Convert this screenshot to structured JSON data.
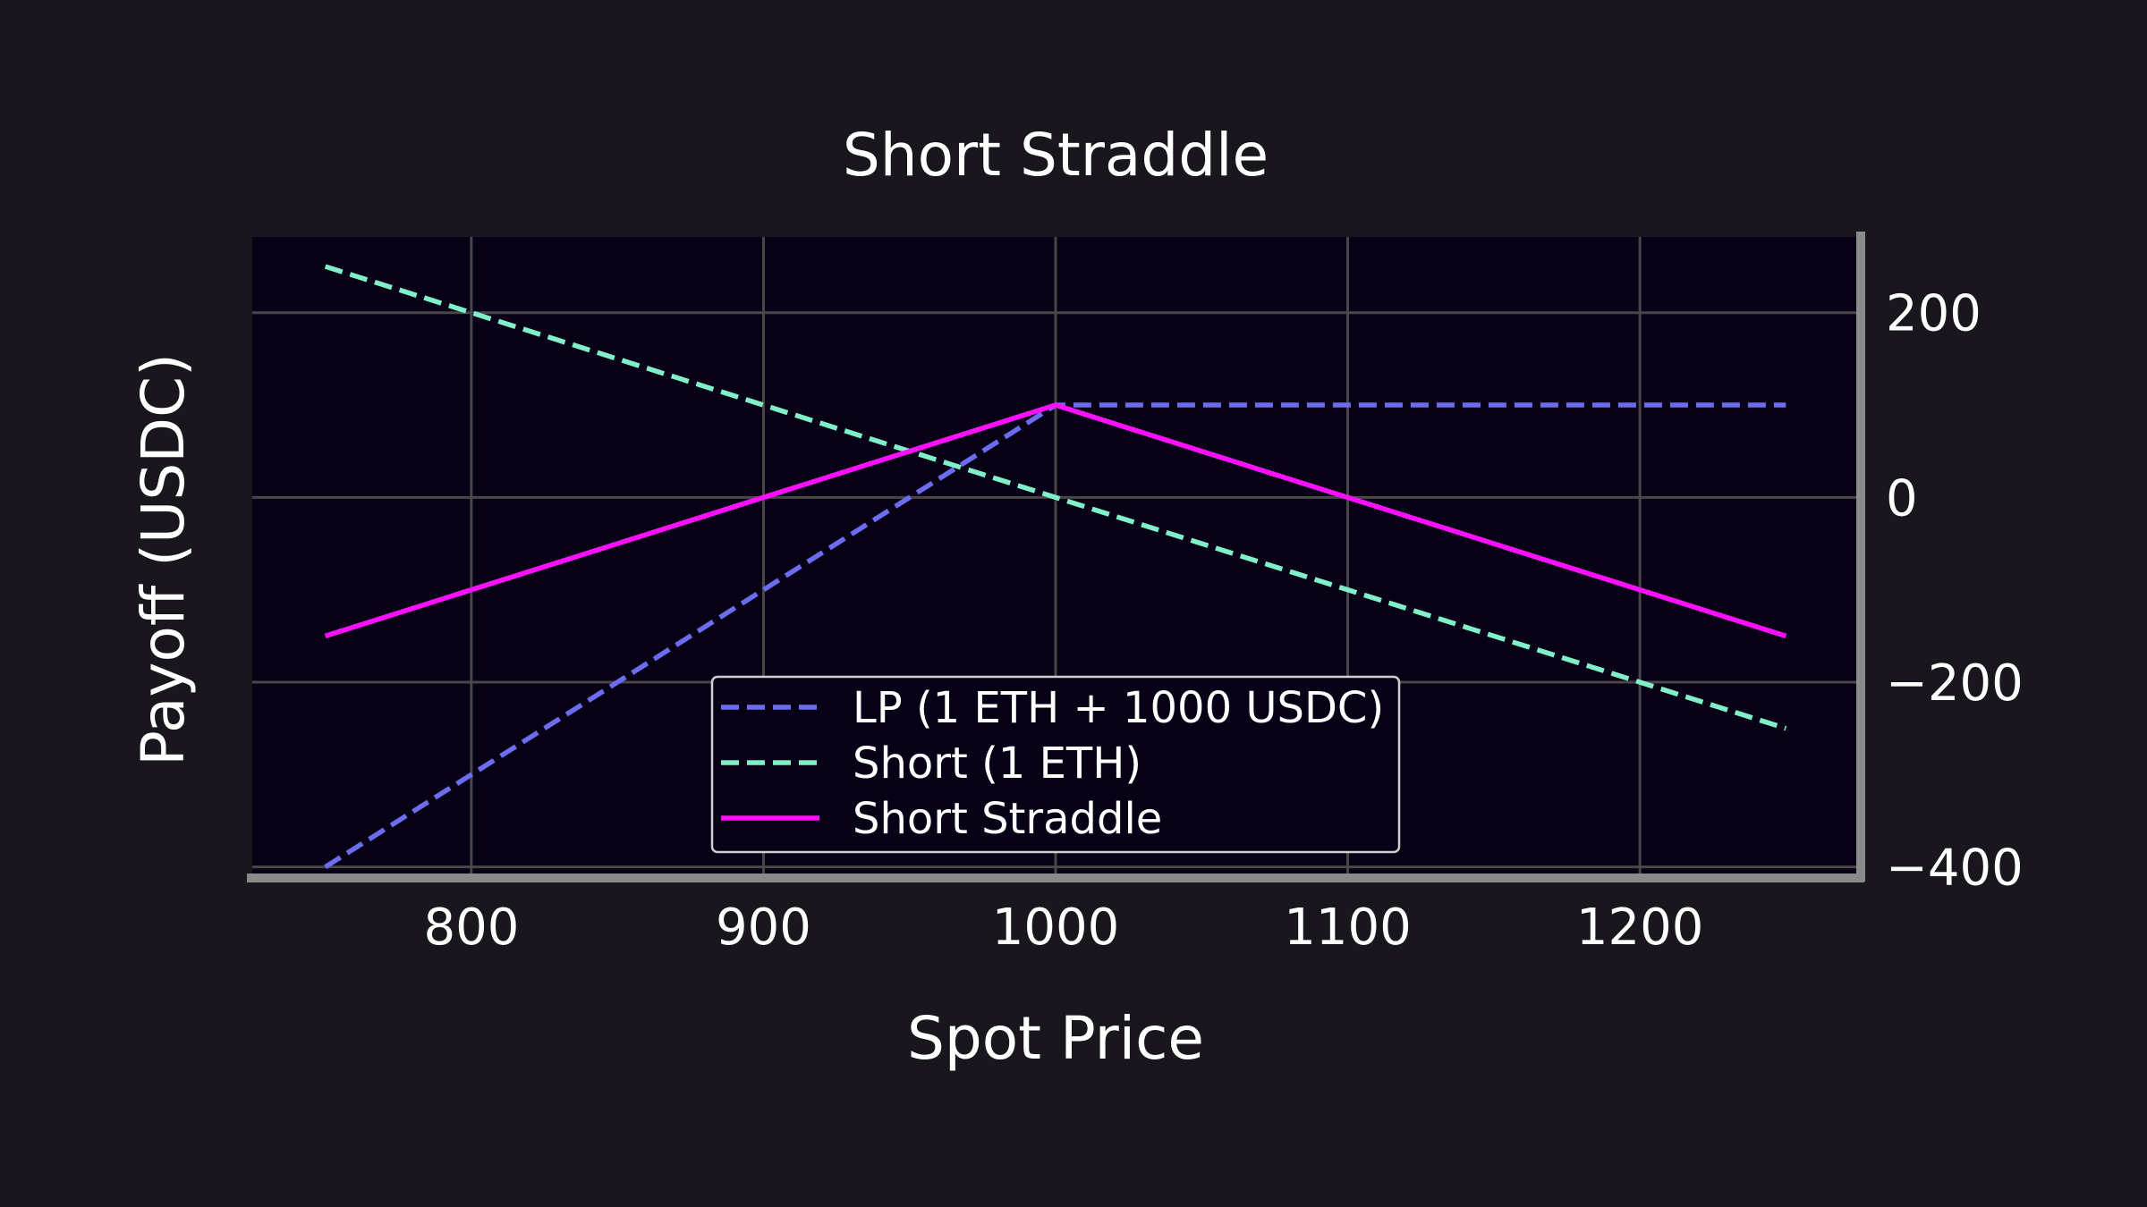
{
  "chart_data": {
    "type": "line",
    "title": "Short Straddle",
    "xlabel": "Spot Price",
    "ylabel": "Payoff (USDC)",
    "xlim": [
      725,
      1275
    ],
    "ylim": [
      -410,
      282
    ],
    "x_ticks": [
      800,
      900,
      1000,
      1100,
      1200
    ],
    "x_tick_labels": [
      "800",
      "900",
      "1000",
      "1100",
      "1200"
    ],
    "y_ticks": [
      200,
      0,
      -200,
      -400
    ],
    "y_tick_labels": [
      "200",
      "0",
      "−200",
      "−400"
    ],
    "y_axis_side": "right",
    "grid": true,
    "legend": {
      "position": "bottom-center"
    },
    "series": [
      {
        "name": "LP (1 ETH + 1000 USDC)",
        "color": "#6c6cf0",
        "dash": "dashed",
        "x": [
          750,
          1000,
          1250
        ],
        "y": [
          -400,
          100,
          100
        ]
      },
      {
        "name": "Short (1 ETH)",
        "color": "#7ff0c8",
        "dash": "dashed",
        "x": [
          750,
          1250
        ],
        "y": [
          250,
          -250
        ]
      },
      {
        "name": "Short Straddle",
        "color": "#ff10ff",
        "dash": "solid",
        "x": [
          750,
          1000,
          1250
        ],
        "y": [
          -150,
          100,
          -150
        ]
      }
    ]
  }
}
